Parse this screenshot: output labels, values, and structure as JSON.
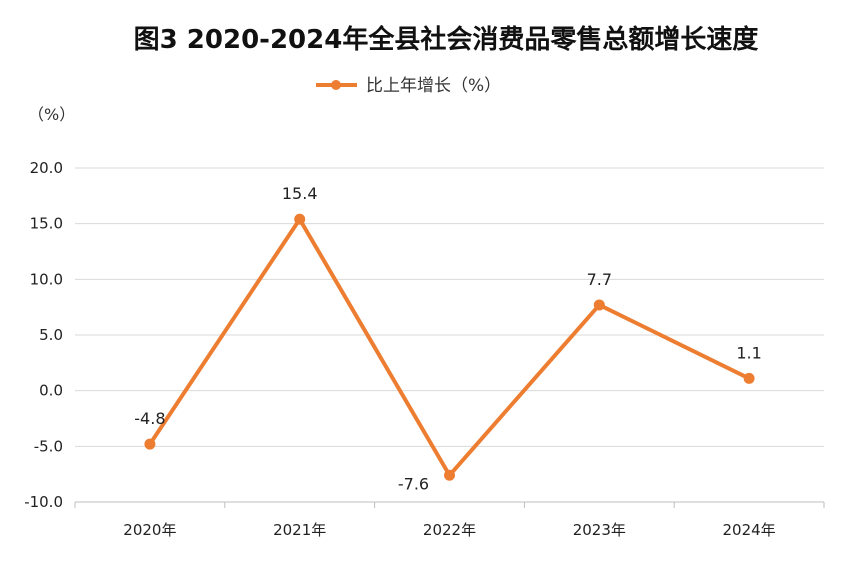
{
  "chart_data": {
    "type": "line",
    "title": "图3  2020-2024年全县社会消费品零售总额增长速度",
    "y_unit": "（%）",
    "categories": [
      "2020年",
      "2021年",
      "2022年",
      "2023年",
      "2024年"
    ],
    "series": [
      {
        "name": "比上年增长（%）",
        "values": [
          -4.8,
          15.4,
          -7.6,
          7.7,
          1.1
        ]
      }
    ],
    "data_labels": [
      "-4.8",
      "15.4",
      "-7.6",
      "7.7",
      "1.1"
    ],
    "y_ticks": [
      "20.0",
      "15.0",
      "10.0",
      "5.0",
      "0.0",
      "-5.0",
      "-10.0"
    ],
    "ylim": [
      -10,
      20
    ],
    "grid": true,
    "legend_position": "top",
    "colors": {
      "line": "#ED7D31",
      "grid": "#D9D9D9"
    }
  }
}
